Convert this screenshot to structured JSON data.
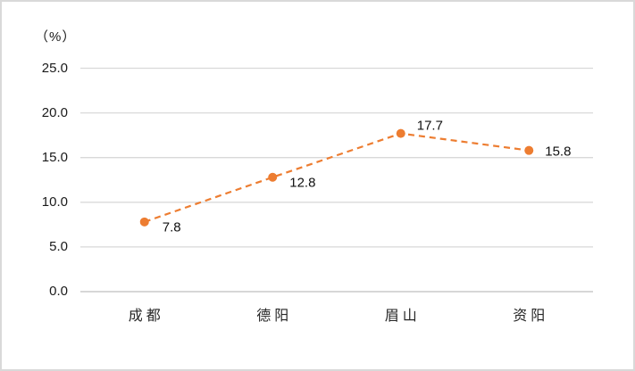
{
  "window": {
    "background_color": "#ffffff",
    "frame_border_color": "#d9d9d9"
  },
  "chart_data": {
    "type": "line",
    "title": "",
    "unit_label": "（%）",
    "categories": [
      "成 都",
      "德 阳",
      "眉 山",
      "资 阳"
    ],
    "values": [
      7.8,
      12.8,
      17.7,
      15.8
    ],
    "point_labels": [
      "7.8",
      "12.8",
      "17.7",
      "15.8"
    ],
    "ytick_labels": [
      "25.0",
      "20.0",
      "15.0",
      "10.0",
      "5.0",
      "0.0"
    ],
    "ylim": [
      0,
      25
    ],
    "xlabel": "",
    "ylabel": "（%）",
    "grid": true,
    "legend_position": "none",
    "line_color": "#ED7D31",
    "line_style": "dashed",
    "marker": "circle",
    "marker_color": "#ED7D31",
    "gridline_color": "#D9D9D9",
    "axis_line_color": "#BFBFBF"
  }
}
